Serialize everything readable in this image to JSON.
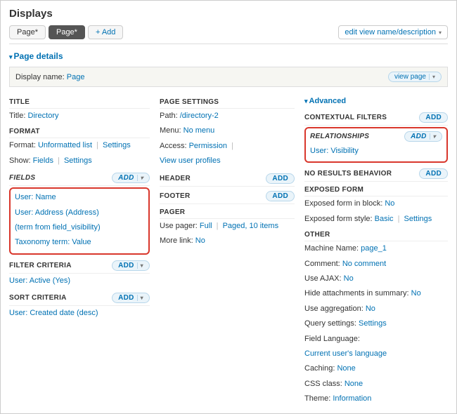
{
  "header": {
    "title": "Displays"
  },
  "tabs": {
    "tab1": "Page*",
    "tab2": "Page*",
    "add": "+ Add",
    "edit": "edit view name/description"
  },
  "details_label": "Page details",
  "display_name": {
    "label": "Display name:",
    "value": "Page",
    "button": "view page"
  },
  "col1": {
    "title_h": "TITLE",
    "title_row": {
      "label": "Title:",
      "value": "Directory"
    },
    "format_h": "FORMAT",
    "format_row": {
      "label": "Format:",
      "value": "Unformatted list",
      "settings": "Settings"
    },
    "show_row": {
      "label": "Show:",
      "value": "Fields",
      "settings": "Settings"
    },
    "fields_h": "FIELDS",
    "fields": {
      "f1": "User: Name",
      "f2": "User: Address (Address)",
      "f3": "(term from field_visibility)",
      "f4": "Taxonomy term: Value"
    },
    "filter_h": "FILTER CRITERIA",
    "filter1": "User: Active (Yes)",
    "sort_h": "SORT CRITERIA",
    "sort1": "User: Created date (desc)"
  },
  "col2": {
    "page_h": "PAGE SETTINGS",
    "path": {
      "label": "Path:",
      "value": "/directory-2"
    },
    "menu": {
      "label": "Menu:",
      "value": "No menu"
    },
    "access": {
      "label": "Access:",
      "value": "Permission",
      "sub": "View user profiles"
    },
    "header_h": "HEADER",
    "footer_h": "FOOTER",
    "pager_h": "PAGER",
    "pager": {
      "label": "Use pager:",
      "v1": "Full",
      "v2": "Paged, 10 items"
    },
    "more": {
      "label": "More link:",
      "value": "No"
    }
  },
  "col3": {
    "advanced": "Advanced",
    "ctx_h": "CONTEXTUAL FILTERS",
    "rel_h": "RELATIONSHIPS",
    "rel1": "User: Visibility",
    "nores_h": "NO RESULTS BEHAVIOR",
    "exp_h": "EXPOSED FORM",
    "exp1": {
      "label": "Exposed form in block:",
      "value": "No"
    },
    "exp2": {
      "label": "Exposed form style:",
      "value": "Basic",
      "settings": "Settings"
    },
    "other_h": "OTHER",
    "o_machine": {
      "label": "Machine Name:",
      "value": "page_1"
    },
    "o_comment": {
      "label": "Comment:",
      "value": "No comment"
    },
    "o_ajax": {
      "label": "Use AJAX:",
      "value": "No"
    },
    "o_hide": {
      "label": "Hide attachments in summary:",
      "value": "No"
    },
    "o_agg": {
      "label": "Use aggregation:",
      "value": "No"
    },
    "o_query": {
      "label": "Query settings:",
      "value": "Settings"
    },
    "o_lang": {
      "label": "Field Language:",
      "value": "Current user's language"
    },
    "o_cache": {
      "label": "Caching:",
      "value": "None"
    },
    "o_css": {
      "label": "CSS class:",
      "value": "None"
    },
    "o_theme": {
      "label": "Theme:",
      "value": "Information"
    }
  },
  "btn": {
    "add": "add"
  }
}
